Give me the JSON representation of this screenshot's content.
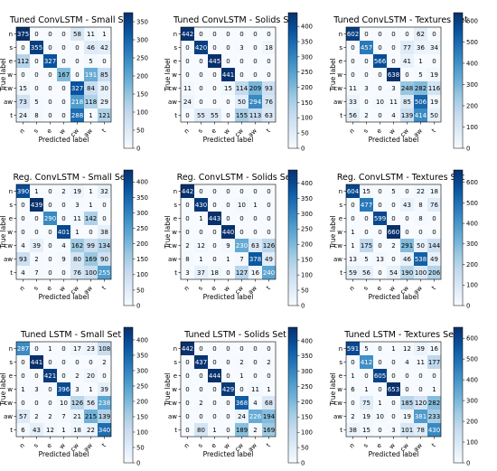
{
  "chart_data": [
    {
      "type": "heatmap",
      "title": "Tuned ConvLSTM - Small Set",
      "xlabel": "Predicted label",
      "ylabel": "True label",
      "labels": [
        "n",
        "s",
        "e",
        "w",
        "cw",
        "aw",
        "t"
      ],
      "matrix": [
        [
          375,
          0,
          0,
          0,
          58,
          11,
          1
        ],
        [
          0,
          355,
          0,
          0,
          0,
          46,
          42
        ],
        [
          112,
          0,
          327,
          0,
          0,
          5,
          0
        ],
        [
          0,
          0,
          0,
          167,
          0,
          191,
          85
        ],
        [
          15,
          0,
          0,
          0,
          327,
          84,
          30
        ],
        [
          73,
          5,
          0,
          0,
          218,
          118,
          29
        ],
        [
          24,
          8,
          0,
          0,
          288,
          1,
          121
        ]
      ],
      "colorbar_ticks": [
        0,
        50,
        100,
        150,
        200,
        250,
        300,
        350
      ],
      "vmax": 375
    },
    {
      "type": "heatmap",
      "title": "Tuned ConvLSTM - Solids Set",
      "xlabel": "Predicted label",
      "ylabel": "True label",
      "labels": [
        "n",
        "s",
        "e",
        "w",
        "cw",
        "aw",
        "t"
      ],
      "matrix": [
        [
          442,
          0,
          0,
          0,
          0,
          0,
          0
        ],
        [
          0,
          420,
          0,
          0,
          3,
          0,
          18
        ],
        [
          0,
          0,
          445,
          0,
          0,
          0,
          0
        ],
        [
          0,
          0,
          0,
          441,
          0,
          0,
          0
        ],
        [
          11,
          0,
          0,
          15,
          114,
          209,
          93
        ],
        [
          24,
          0,
          0,
          0,
          50,
          294,
          76
        ],
        [
          0,
          55,
          55,
          0,
          155,
          113,
          63
        ]
      ],
      "colorbar_ticks": [
        0,
        50,
        100,
        150,
        200,
        250,
        300,
        350,
        400
      ],
      "vmax": 445
    },
    {
      "type": "heatmap",
      "title": "Tuned ConvLSTM - Textures Set",
      "xlabel": "Predicted label",
      "ylabel": "True label",
      "labels": [
        "n",
        "s",
        "e",
        "w",
        "cw",
        "aw",
        "t"
      ],
      "matrix": [
        [
          602,
          0,
          0,
          0,
          0,
          62,
          0
        ],
        [
          0,
          457,
          0,
          0,
          77,
          36,
          34
        ],
        [
          0,
          0,
          566,
          0,
          41,
          1,
          0
        ],
        [
          0,
          0,
          0,
          638,
          0,
          5,
          19
        ],
        [
          11,
          3,
          0,
          3,
          248,
          282,
          116
        ],
        [
          33,
          0,
          10,
          11,
          85,
          506,
          19
        ],
        [
          56,
          2,
          0,
          4,
          139,
          414,
          50
        ]
      ],
      "colorbar_ticks": [
        0,
        100,
        200,
        300,
        400,
        500,
        600
      ],
      "vmax": 638
    },
    {
      "type": "heatmap",
      "title": "Reg. ConvLSTM - Small Set",
      "xlabel": "Predicted label",
      "ylabel": "True label",
      "labels": [
        "n",
        "s",
        "e",
        "w",
        "cw",
        "aw",
        "t"
      ],
      "matrix": [
        [
          390,
          1,
          0,
          2,
          19,
          1,
          32
        ],
        [
          0,
          439,
          0,
          0,
          3,
          1,
          0
        ],
        [
          0,
          0,
          290,
          0,
          11,
          142,
          0
        ],
        [
          0,
          0,
          0,
          401,
          1,
          0,
          38
        ],
        [
          4,
          39,
          0,
          4,
          162,
          99,
          134
        ],
        [
          93,
          2,
          0,
          9,
          80,
          169,
          90
        ],
        [
          4,
          7,
          0,
          0,
          76,
          100,
          255
        ]
      ],
      "colorbar_ticks": [
        0,
        50,
        100,
        150,
        200,
        250,
        300,
        350,
        400
      ],
      "vmax": 439
    },
    {
      "type": "heatmap",
      "title": "Reg. ConvLSTM - Solids Set",
      "xlabel": "Predicted label",
      "ylabel": "True label",
      "labels": [
        "n",
        "s",
        "e",
        "w",
        "cw",
        "aw",
        "t"
      ],
      "matrix": [
        [
          442,
          0,
          0,
          0,
          0,
          0,
          0
        ],
        [
          0,
          430,
          0,
          0,
          10,
          1,
          0
        ],
        [
          0,
          1,
          443,
          0,
          0,
          0,
          0
        ],
        [
          0,
          0,
          0,
          440,
          0,
          0,
          0
        ],
        [
          2,
          12,
          0,
          9,
          230,
          63,
          126
        ],
        [
          8,
          1,
          0,
          1,
          7,
          378,
          49
        ],
        [
          3,
          37,
          18,
          0,
          127,
          16,
          240
        ]
      ],
      "colorbar_ticks": [
        0,
        50,
        100,
        150,
        200,
        250,
        300,
        350,
        400
      ],
      "vmax": 443
    },
    {
      "type": "heatmap",
      "title": "Reg. ConvLSTM - Textures Set",
      "xlabel": "Predicted label",
      "ylabel": "True label",
      "labels": [
        "n",
        "s",
        "e",
        "w",
        "cw",
        "aw",
        "t"
      ],
      "matrix": [
        [
          604,
          15,
          0,
          5,
          0,
          22,
          18
        ],
        [
          0,
          477,
          0,
          0,
          43,
          8,
          76
        ],
        [
          0,
          0,
          599,
          0,
          0,
          8,
          0
        ],
        [
          1,
          0,
          0,
          660,
          0,
          0,
          0
        ],
        [
          1,
          175,
          0,
          2,
          291,
          50,
          144
        ],
        [
          13,
          5,
          13,
          0,
          46,
          538,
          49
        ],
        [
          59,
          56,
          0,
          54,
          190,
          100,
          206
        ]
      ],
      "colorbar_ticks": [
        0,
        100,
        200,
        300,
        400,
        500,
        600
      ],
      "vmax": 660
    },
    {
      "type": "heatmap",
      "title": "Tuned LSTM - Small Set",
      "xlabel": "Predicted label",
      "ylabel": "True label",
      "labels": [
        "n",
        "s",
        "e",
        "w",
        "cw",
        "aw",
        "t"
      ],
      "matrix": [
        [
          287,
          0,
          1,
          0,
          17,
          23,
          108
        ],
        [
          0,
          441,
          0,
          0,
          0,
          0,
          2
        ],
        [
          0,
          0,
          421,
          0,
          2,
          20,
          0
        ],
        [
          1,
          3,
          0,
          396,
          3,
          1,
          39
        ],
        [
          0,
          0,
          0,
          10,
          126,
          56,
          238
        ],
        [
          57,
          2,
          2,
          7,
          21,
          215,
          139
        ],
        [
          6,
          43,
          12,
          1,
          18,
          22,
          340
        ]
      ],
      "colorbar_ticks": [
        0,
        50,
        100,
        150,
        200,
        250,
        300,
        350,
        400
      ],
      "vmax": 441
    },
    {
      "type": "heatmap",
      "title": "Tuned LSTM - Solids Set",
      "xlabel": "Predicted label",
      "ylabel": "True label",
      "labels": [
        "n",
        "s",
        "e",
        "w",
        "cw",
        "aw",
        "t"
      ],
      "matrix": [
        [
          442,
          0,
          0,
          0,
          0,
          0,
          0
        ],
        [
          0,
          437,
          0,
          0,
          2,
          0,
          2
        ],
        [
          0,
          0,
          444,
          0,
          1,
          0,
          0
        ],
        [
          0,
          0,
          0,
          429,
          0,
          11,
          1
        ],
        [
          0,
          2,
          0,
          0,
          368,
          4,
          68
        ],
        [
          0,
          0,
          0,
          0,
          24,
          226,
          194
        ],
        [
          0,
          80,
          1,
          0,
          189,
          2,
          169
        ]
      ],
      "colorbar_ticks": [
        0,
        50,
        100,
        150,
        200,
        250,
        300,
        350,
        400
      ],
      "vmax": 444
    },
    {
      "type": "heatmap",
      "title": "Tuned LSTM - Textures Set",
      "xlabel": "Predicted label",
      "ylabel": "True label",
      "labels": [
        "n",
        "s",
        "e",
        "w",
        "cw",
        "aw",
        "t"
      ],
      "matrix": [
        [
          591,
          5,
          0,
          1,
          12,
          39,
          16
        ],
        [
          0,
          412,
          0,
          0,
          4,
          11,
          177
        ],
        [
          1,
          0,
          605,
          0,
          0,
          0,
          0
        ],
        [
          6,
          1,
          0,
          653,
          0,
          0,
          1
        ],
        [
          0,
          75,
          1,
          0,
          185,
          120,
          282
        ],
        [
          2,
          19,
          10,
          0,
          19,
          381,
          233
        ],
        [
          38,
          15,
          0,
          3,
          101,
          78,
          430
        ]
      ],
      "colorbar_ticks": [
        0,
        100,
        200,
        300,
        400,
        500,
        600
      ],
      "vmax": 653
    }
  ],
  "colors": {
    "low": "#f7fbff",
    "high": "#08306b",
    "text_dark": "#000000",
    "text_light": "#ffffff"
  }
}
